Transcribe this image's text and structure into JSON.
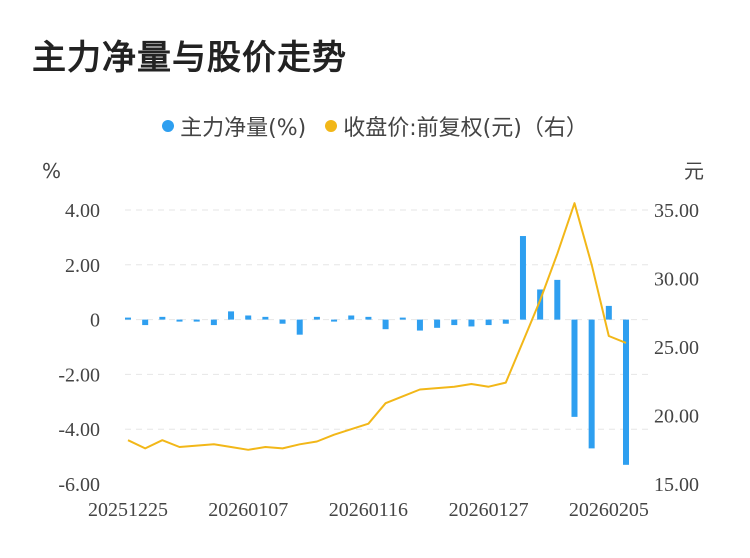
{
  "chart_data": {
    "type": "bar+line",
    "title": "主力净量与股价走势",
    "legend": [
      {
        "name": "主力净量(%)",
        "color": "#2e9ff0"
      },
      {
        "name": "收盘价:前复权(元)（右）",
        "color": "#f2b718"
      }
    ],
    "y_left_unit": "%",
    "y_right_unit": "元",
    "y_left_ticks": [
      "4.00",
      "2.00",
      "0",
      "-2.00",
      "-4.00",
      "-6.00"
    ],
    "y_right_ticks": [
      "35.00",
      "30.00",
      "25.00",
      "20.00",
      "15.00"
    ],
    "ylim_left": [
      -6,
      4
    ],
    "ylim_right": [
      15,
      35
    ],
    "x_tick_labels": [
      "20251225",
      "20260107",
      "20260116",
      "20260127",
      "20260205"
    ],
    "series": [
      {
        "name": "主力净量(%)",
        "type": "bar",
        "values": [
          0.05,
          -0.2,
          0.1,
          -0.05,
          -0.05,
          -0.2,
          0.3,
          0.15,
          0.1,
          -0.15,
          -0.55,
          0.1,
          -0.05,
          0.15,
          0.1,
          -0.35,
          0.05,
          -0.4,
          -0.3,
          -0.2,
          -0.25,
          -0.2,
          -0.15,
          3.05,
          1.1,
          1.45,
          -3.55,
          -4.7,
          0.5,
          -5.3
        ]
      },
      {
        "name": "收盘价:前复权(元)（右）",
        "type": "line",
        "values": [
          18.2,
          17.6,
          18.2,
          17.7,
          17.8,
          17.9,
          17.7,
          17.5,
          17.7,
          17.6,
          17.9,
          18.1,
          18.6,
          19.0,
          19.4,
          20.9,
          21.4,
          21.9,
          22.0,
          22.1,
          22.3,
          22.1,
          22.4,
          25.4,
          28.4,
          31.8,
          35.5,
          31.0,
          25.8,
          25.3
        ]
      }
    ]
  }
}
